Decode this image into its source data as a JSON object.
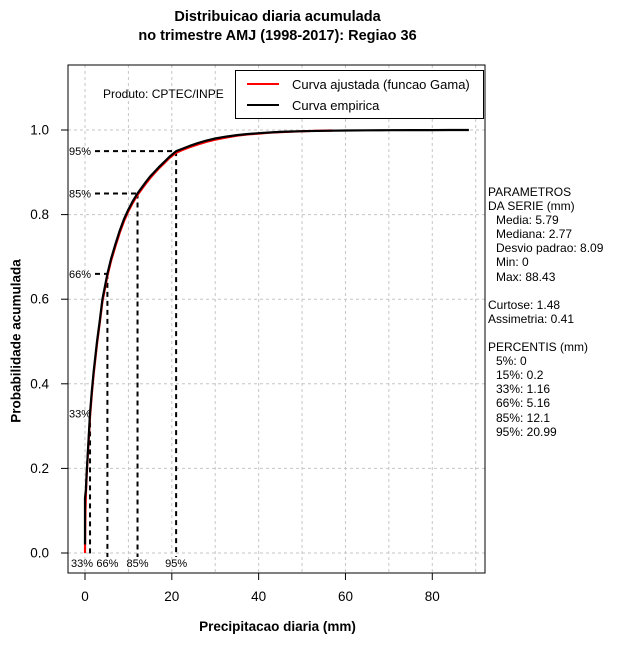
{
  "title": {
    "line1": "Distribuicao diaria acumulada",
    "line2": "no trimestre AMJ (1998-2017): Regiao 36"
  },
  "watermark": "Produto: CPTEC/INPE",
  "legend": {
    "items": [
      {
        "label": "Curva ajustada (funcao Gama)",
        "color": "#ff0000"
      },
      {
        "label": "Curva empirica",
        "color": "#000000"
      }
    ]
  },
  "axes": {
    "x": {
      "label": "Precipitacao diaria (mm)",
      "ticks": [
        0,
        20,
        40,
        60,
        80
      ]
    },
    "y": {
      "label": "Probabilidade acumulada",
      "ticks": [
        "0.0",
        "0.2",
        "0.4",
        "0.6",
        "0.8",
        "1.0"
      ]
    }
  },
  "side_panel": {
    "lines": [
      {
        "text": "PARAMETROS",
        "indent": 0
      },
      {
        "text": "DA SERIE (mm)",
        "indent": 0
      },
      {
        "text": "Media: 5.79",
        "indent": 1
      },
      {
        "text": "Mediana: 2.77",
        "indent": 1
      },
      {
        "text": "Desvio padrao: 8.09",
        "indent": 1
      },
      {
        "text": "Min: 0",
        "indent": 1
      },
      {
        "text": "Max: 88.43",
        "indent": 1
      },
      {
        "text": "",
        "indent": 0
      },
      {
        "text": "Curtose: 1.48",
        "indent": 0
      },
      {
        "text": "Assimetria: 0.41",
        "indent": 0
      },
      {
        "text": "",
        "indent": 0
      },
      {
        "text": "PERCENTIS (mm)",
        "indent": 0
      },
      {
        "text": "5%: 0",
        "indent": 1
      },
      {
        "text": "15%: 0.2",
        "indent": 1
      },
      {
        "text": "33%: 1.16",
        "indent": 1
      },
      {
        "text": "66%: 5.16",
        "indent": 1
      },
      {
        "text": "85%: 12.1",
        "indent": 1
      },
      {
        "text": "95%: 20.99",
        "indent": 1
      }
    ]
  },
  "colors": {
    "grid": "#c6c6c6",
    "axis": "#000000",
    "fitted": "#ff0000",
    "empirical": "#000000",
    "marker_dash": "#000000"
  },
  "chart_data": {
    "type": "line",
    "title": "Distribuicao diaria acumulada no trimestre AMJ (1998-2017): Regiao 36",
    "xlabel": "Precipitacao diaria (mm)",
    "ylabel": "Probabilidade acumulada",
    "xlim": [
      -4,
      92
    ],
    "ylim": [
      -0.05,
      1.15
    ],
    "x_ticks": [
      0,
      20,
      40,
      60,
      80
    ],
    "y_ticks": [
      0,
      0.2,
      0.4,
      0.6,
      0.8,
      1.0
    ],
    "x_gridlines": [
      0,
      10,
      20,
      30,
      40,
      50,
      60,
      70,
      80,
      90
    ],
    "grid": true,
    "legend_position": "top-right",
    "percentile_markers": [
      {
        "pct": "33%",
        "probability": 0.33,
        "value_mm": 1.16
      },
      {
        "pct": "66%",
        "probability": 0.66,
        "value_mm": 5.16
      },
      {
        "pct": "85%",
        "probability": 0.85,
        "value_mm": 12.1
      },
      {
        "pct": "95%",
        "probability": 0.95,
        "value_mm": 20.99
      }
    ],
    "statistics": {
      "media": 5.79,
      "mediana": 2.77,
      "desvio_padrao": 8.09,
      "min": 0,
      "max": 88.43,
      "curtose": 1.48,
      "assimetria": 0.41
    },
    "percentis_mm": {
      "5%": 0,
      "15%": 0.2,
      "33%": 1.16,
      "66%": 5.16,
      "85%": 12.1,
      "95%": 20.99
    },
    "series": [
      {
        "name": "Curva ajustada (funcao Gama)",
        "color": "#ff0000",
        "points": [
          [
            0,
            0
          ],
          [
            0.05,
            0.06
          ],
          [
            0.1,
            0.095
          ],
          [
            0.2,
            0.14
          ],
          [
            0.4,
            0.185
          ],
          [
            0.7,
            0.24
          ],
          [
            1.16,
            0.322
          ],
          [
            1.6,
            0.378
          ],
          [
            2,
            0.424
          ],
          [
            2.77,
            0.494
          ],
          [
            3.4,
            0.545
          ],
          [
            4,
            0.594
          ],
          [
            5.16,
            0.655
          ],
          [
            6,
            0.69
          ],
          [
            7,
            0.725
          ],
          [
            8,
            0.757
          ],
          [
            9,
            0.785
          ],
          [
            10,
            0.808
          ],
          [
            11,
            0.828
          ],
          [
            12.1,
            0.846
          ],
          [
            13,
            0.859
          ],
          [
            14,
            0.873
          ],
          [
            15,
            0.886
          ],
          [
            16,
            0.898
          ],
          [
            17,
            0.909
          ],
          [
            18,
            0.919
          ],
          [
            19.5,
            0.934
          ],
          [
            20.99,
            0.946
          ],
          [
            22.5,
            0.953
          ],
          [
            24,
            0.959
          ],
          [
            26,
            0.966
          ],
          [
            28,
            0.972
          ],
          [
            30,
            0.977
          ],
          [
            32.5,
            0.982
          ],
          [
            35,
            0.9865
          ],
          [
            37.5,
            0.9895
          ],
          [
            40,
            0.9915
          ],
          [
            42.5,
            0.9935
          ],
          [
            45,
            0.995
          ],
          [
            47.5,
            0.996
          ],
          [
            50,
            0.997
          ],
          [
            53,
            0.998
          ],
          [
            57,
            0.9988
          ]
        ]
      },
      {
        "name": "Curva empirica",
        "color": "#000000",
        "points": [
          [
            0,
            0.02
          ],
          [
            0,
            0.13
          ],
          [
            0.2,
            0.15
          ],
          [
            0.4,
            0.19
          ],
          [
            0.7,
            0.245
          ],
          [
            1.16,
            0.33
          ],
          [
            1.6,
            0.385
          ],
          [
            2,
            0.43
          ],
          [
            2.77,
            0.5
          ],
          [
            3.4,
            0.55
          ],
          [
            4,
            0.6
          ],
          [
            5.16,
            0.66
          ],
          [
            6,
            0.695
          ],
          [
            7,
            0.73
          ],
          [
            8,
            0.762
          ],
          [
            9,
            0.79
          ],
          [
            10,
            0.812
          ],
          [
            11,
            0.832
          ],
          [
            12.1,
            0.85
          ],
          [
            13,
            0.863
          ],
          [
            14,
            0.877
          ],
          [
            15,
            0.89
          ],
          [
            16,
            0.901
          ],
          [
            17,
            0.912
          ],
          [
            18,
            0.922
          ],
          [
            19.5,
            0.937
          ],
          [
            20.99,
            0.95
          ],
          [
            22.5,
            0.956
          ],
          [
            24,
            0.962
          ],
          [
            26,
            0.969
          ],
          [
            28,
            0.975
          ],
          [
            30,
            0.98
          ],
          [
            32.5,
            0.9845
          ],
          [
            35,
            0.988
          ],
          [
            37.5,
            0.9905
          ],
          [
            40,
            0.9925
          ],
          [
            42.5,
            0.994
          ],
          [
            45,
            0.9955
          ],
          [
            47.5,
            0.9965
          ],
          [
            50,
            0.9972
          ],
          [
            55,
            0.998
          ],
          [
            60,
            0.9987
          ],
          [
            65,
            0.9992
          ],
          [
            70,
            0.9995
          ],
          [
            75,
            0.9997
          ],
          [
            80,
            0.9998
          ],
          [
            84,
            0.9999
          ],
          [
            88.43,
            1
          ]
        ]
      }
    ]
  }
}
